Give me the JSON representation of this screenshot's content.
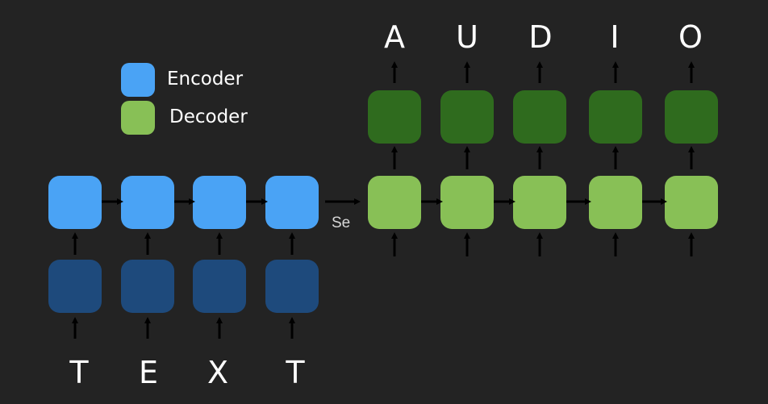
{
  "legend": {
    "encoder_label": "Encoder",
    "decoder_label": "Decoder"
  },
  "input_letters": [
    "T",
    "E",
    "X",
    "T"
  ],
  "output_letters": [
    "A",
    "U",
    "D",
    "I",
    "O"
  ],
  "context_label": "Se",
  "colors": {
    "background": "#232323",
    "encoder": "#4aa3f5",
    "encoder_input": "#1e4a7c",
    "decoder": "#88c056",
    "decoder_output": "#2f6b1e",
    "arrow": "#000000"
  }
}
